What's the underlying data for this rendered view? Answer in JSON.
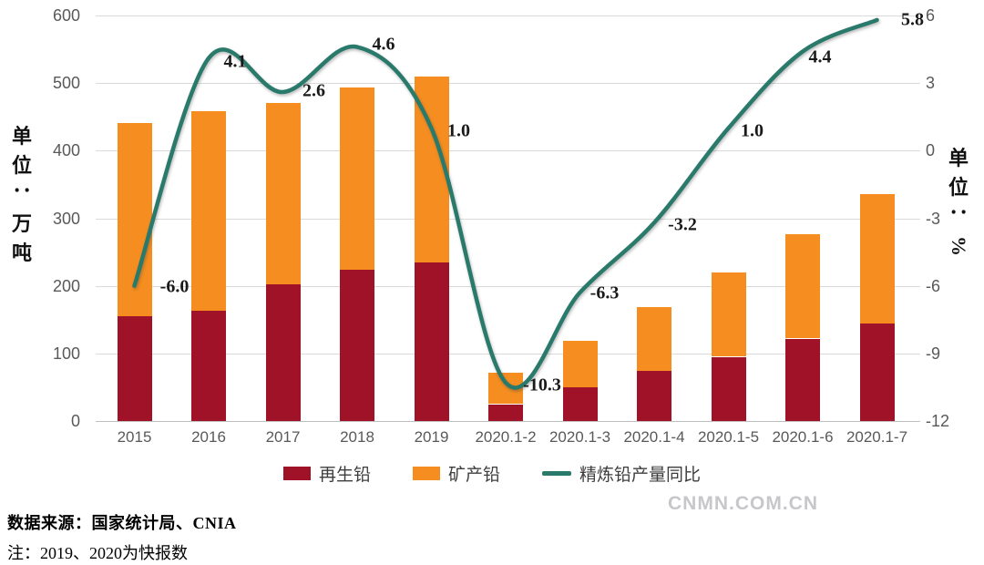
{
  "chart_data": {
    "type": "bar",
    "subtype": "stacked-bar-with-line",
    "categories": [
      "2015",
      "2016",
      "2017",
      "2018",
      "2019",
      "2020.1-2",
      "2020.1-3",
      "2020.1-4",
      "2020.1-5",
      "2020.1-6",
      "2020.1-7"
    ],
    "series": [
      {
        "name": "再生铅",
        "type": "bar",
        "color": "#a01228",
        "values": [
          155,
          163,
          202,
          224,
          234,
          25,
          50,
          74,
          95,
          122,
          144
        ]
      },
      {
        "name": "矿产铅",
        "type": "bar",
        "color": "#f68d20",
        "values": [
          286,
          295,
          268,
          269,
          276,
          46,
          69,
          94,
          125,
          154,
          192
        ]
      },
      {
        "name": "精炼铅产量同比",
        "type": "line",
        "color": "#2a7a6c",
        "values": [
          -6.0,
          4.1,
          2.6,
          4.6,
          1.0,
          -10.3,
          -6.3,
          -3.2,
          1.0,
          4.4,
          5.8
        ]
      }
    ],
    "left_axis": {
      "title": "单位：万吨",
      "ticks": [
        600,
        500,
        400,
        300,
        200,
        100,
        0
      ],
      "range": [
        0,
        600
      ]
    },
    "right_axis": {
      "title": "单位：%",
      "ticks": [
        6,
        3,
        0,
        -3,
        -6,
        -9,
        -12
      ],
      "range": [
        -12,
        6
      ]
    },
    "grid": "horizontal-on",
    "legend_position": "bottom"
  },
  "footer": {
    "source": "数据来源：国家统计局、CNIA",
    "note": "注：2019、2020为快报数"
  },
  "watermark": "CNMN.COM.CN",
  "colors": {
    "recycled_lead": "#a01228",
    "mined_lead": "#f68d20",
    "trend_line": "#2a7a6c",
    "grid": "#dadada",
    "axis_text": "#595959"
  }
}
